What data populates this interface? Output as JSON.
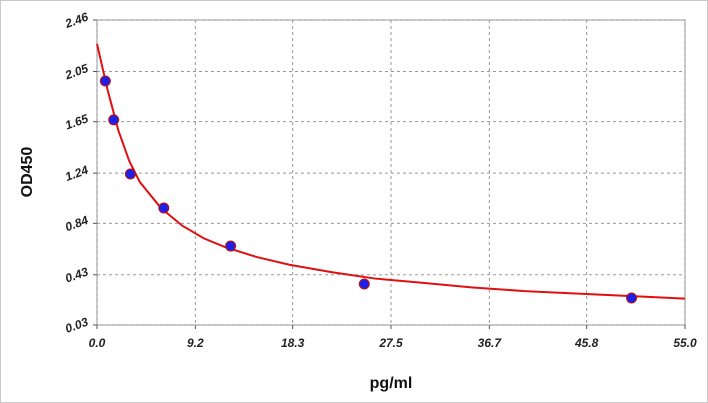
{
  "chart_data": {
    "type": "scatter",
    "xlabel": "pg/ml",
    "ylabel": "OD450",
    "xlim": [
      0,
      55
    ],
    "ylim": [
      0.03,
      2.46
    ],
    "xticks": [
      {
        "value": 0,
        "label": "0.0"
      },
      9.2,
      18.3,
      27.5,
      36.7,
      45.8,
      {
        "value": 55,
        "label": "55.0"
      }
    ],
    "yticks": [
      0.03,
      0.43,
      0.84,
      1.24,
      1.65,
      2.05,
      2.46
    ],
    "grid": true,
    "series": [
      {
        "type": "scatter",
        "color": "#1f1fe6",
        "x": [
          0.78,
          1.56,
          3.125,
          6.25,
          12.5,
          25,
          50
        ],
        "values": [
          1.974,
          1.664,
          1.233,
          0.962,
          0.659,
          0.357,
          0.245
        ]
      },
      {
        "type": "line",
        "color": "#e01010",
        "x": [
          0,
          1,
          2,
          3,
          4,
          6,
          8,
          10,
          12,
          15,
          18,
          22,
          26,
          30,
          35,
          40,
          45,
          50,
          55
        ],
        "values": [
          2.27,
          1.9,
          1.58,
          1.34,
          1.17,
          0.96,
          0.82,
          0.72,
          0.65,
          0.57,
          0.51,
          0.45,
          0.4,
          0.37,
          0.33,
          0.3,
          0.28,
          0.26,
          0.24
        ]
      }
    ]
  }
}
